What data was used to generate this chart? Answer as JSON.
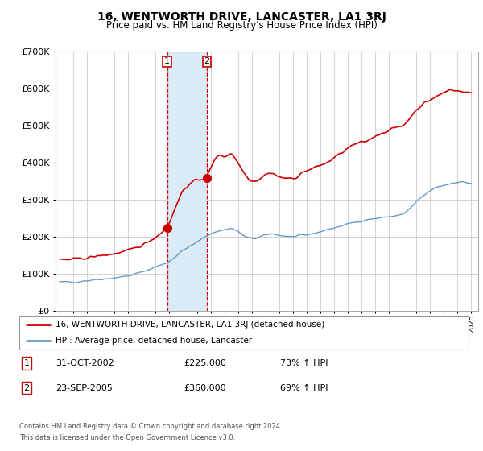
{
  "title": "16, WENTWORTH DRIVE, LANCASTER, LA1 3RJ",
  "subtitle": "Price paid vs. HM Land Registry's House Price Index (HPI)",
  "legend_line1": "16, WENTWORTH DRIVE, LANCASTER, LA1 3RJ (detached house)",
  "legend_line2": "HPI: Average price, detached house, Lancaster",
  "footer1": "Contains HM Land Registry data © Crown copyright and database right 2024.",
  "footer2": "This data is licensed under the Open Government Licence v3.0.",
  "table": [
    {
      "num": "1",
      "date": "31-OCT-2002",
      "price": "£225,000",
      "hpi": "73% ↑ HPI"
    },
    {
      "num": "2",
      "date": "23-SEP-2005",
      "price": "£360,000",
      "hpi": "69% ↑ HPI"
    }
  ],
  "purchase1_year": 2002.83,
  "purchase1_price": 225000,
  "purchase2_year": 2005.72,
  "purchase2_price": 360000,
  "highlight_x1": 2002.83,
  "highlight_x2": 2005.72,
  "ylim": [
    0,
    700000
  ],
  "xlim_start": 1995,
  "xlim_end": 2025,
  "red_color": "#cc0000",
  "blue_color": "#6699cc",
  "highlight_color": "#daeaf7",
  "vline_color": "#cc0000",
  "grid_color": "#cccccc",
  "background_color": "#ffffff",
  "hpi_waypoints": [
    [
      1995.0,
      78000
    ],
    [
      1996.0,
      79000
    ],
    [
      1997.0,
      83000
    ],
    [
      1998.0,
      87000
    ],
    [
      1999.0,
      90000
    ],
    [
      2000.0,
      95000
    ],
    [
      2001.0,
      105000
    ],
    [
      2002.0,
      120000
    ],
    [
      2002.83,
      130000
    ],
    [
      2003.5,
      150000
    ],
    [
      2004.0,
      165000
    ],
    [
      2005.0,
      185000
    ],
    [
      2005.72,
      205000
    ],
    [
      2006.0,
      210000
    ],
    [
      2007.0,
      220000
    ],
    [
      2007.5,
      225000
    ],
    [
      2008.0,
      215000
    ],
    [
      2008.5,
      200000
    ],
    [
      2009.0,
      195000
    ],
    [
      2009.5,
      198000
    ],
    [
      2010.0,
      205000
    ],
    [
      2010.5,
      210000
    ],
    [
      2011.0,
      205000
    ],
    [
      2012.0,
      200000
    ],
    [
      2013.0,
      205000
    ],
    [
      2014.0,
      215000
    ],
    [
      2015.0,
      225000
    ],
    [
      2016.0,
      235000
    ],
    [
      2017.0,
      245000
    ],
    [
      2018.0,
      250000
    ],
    [
      2019.0,
      255000
    ],
    [
      2020.0,
      260000
    ],
    [
      2020.5,
      275000
    ],
    [
      2021.0,
      295000
    ],
    [
      2021.5,
      310000
    ],
    [
      2022.0,
      325000
    ],
    [
      2022.5,
      335000
    ],
    [
      2023.0,
      340000
    ],
    [
      2023.5,
      345000
    ],
    [
      2024.0,
      350000
    ],
    [
      2024.5,
      348000
    ],
    [
      2025.0,
      345000
    ]
  ],
  "red_waypoints": [
    [
      1995.0,
      138000
    ],
    [
      1996.0,
      140000
    ],
    [
      1997.0,
      144000
    ],
    [
      1998.0,
      150000
    ],
    [
      1999.0,
      155000
    ],
    [
      2000.0,
      163000
    ],
    [
      2001.0,
      178000
    ],
    [
      2002.0,
      200000
    ],
    [
      2002.83,
      225000
    ],
    [
      2003.5,
      285000
    ],
    [
      2004.0,
      330000
    ],
    [
      2005.0,
      355000
    ],
    [
      2005.72,
      360000
    ],
    [
      2006.0,
      385000
    ],
    [
      2006.5,
      425000
    ],
    [
      2007.0,
      415000
    ],
    [
      2007.5,
      430000
    ],
    [
      2008.0,
      400000
    ],
    [
      2008.5,
      370000
    ],
    [
      2009.0,
      350000
    ],
    [
      2009.5,
      355000
    ],
    [
      2010.0,
      370000
    ],
    [
      2010.5,
      375000
    ],
    [
      2011.0,
      360000
    ],
    [
      2011.5,
      360000
    ],
    [
      2012.0,
      355000
    ],
    [
      2012.5,
      370000
    ],
    [
      2013.0,
      380000
    ],
    [
      2013.5,
      385000
    ],
    [
      2014.0,
      395000
    ],
    [
      2014.5,
      400000
    ],
    [
      2015.0,
      415000
    ],
    [
      2015.5,
      425000
    ],
    [
      2016.0,
      440000
    ],
    [
      2016.5,
      450000
    ],
    [
      2017.0,
      455000
    ],
    [
      2017.5,
      460000
    ],
    [
      2018.0,
      475000
    ],
    [
      2018.5,
      480000
    ],
    [
      2019.0,
      490000
    ],
    [
      2019.5,
      495000
    ],
    [
      2020.0,
      500000
    ],
    [
      2020.5,
      520000
    ],
    [
      2021.0,
      545000
    ],
    [
      2021.5,
      560000
    ],
    [
      2022.0,
      570000
    ],
    [
      2022.5,
      580000
    ],
    [
      2023.0,
      590000
    ],
    [
      2023.5,
      600000
    ],
    [
      2024.0,
      595000
    ],
    [
      2024.5,
      590000
    ],
    [
      2025.0,
      590000
    ]
  ]
}
